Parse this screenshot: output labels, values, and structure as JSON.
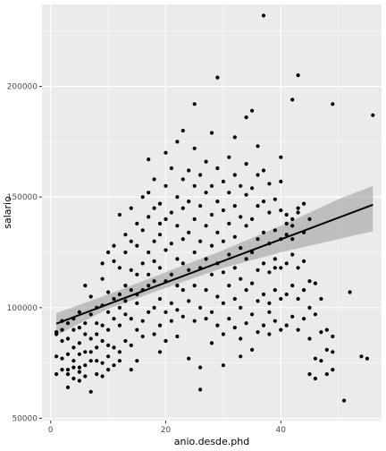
{
  "chart_data": {
    "type": "scatter",
    "title": "",
    "xlabel": "anio.desde.phd",
    "ylabel": "salario",
    "xlim": [
      -1.5,
      57.5
    ],
    "ylim": [
      49000,
      237000
    ],
    "x_ticks": [
      0,
      20,
      40
    ],
    "x_tick_labels": [
      "0",
      "20",
      "40"
    ],
    "y_ticks": [
      50000,
      100000,
      150000,
      200000
    ],
    "y_tick_labels": [
      "50000",
      "100000",
      "150000",
      "200000"
    ],
    "grid": true,
    "panel_background": "#ebebeb",
    "grid_color": "#ffffff",
    "point_color": "#000000",
    "line_color": "#000000",
    "band_color": "#999999",
    "regression": {
      "x": [
        1,
        56
      ],
      "y": [
        92800,
        146500
      ]
    },
    "confidence_band": {
      "x": [
        1,
        10,
        20,
        30,
        40,
        50,
        56
      ],
      "lower": [
        87500,
        99500,
        109000,
        118000,
        125000,
        131000,
        134500
      ],
      "upper": [
        97500,
        106000,
        116000,
        126000,
        137000,
        149000,
        155000
      ]
    },
    "points": [
      [
        1,
        89000
      ],
      [
        1,
        78000
      ],
      [
        1,
        70000
      ],
      [
        1,
        88000
      ],
      [
        2,
        90000
      ],
      [
        2,
        77000
      ],
      [
        2,
        72000
      ],
      [
        2,
        85000
      ],
      [
        2,
        94000
      ],
      [
        3,
        79000
      ],
      [
        3,
        64000
      ],
      [
        3,
        72000
      ],
      [
        3,
        86000
      ],
      [
        3,
        93000
      ],
      [
        3,
        70000
      ],
      [
        4,
        68000
      ],
      [
        4,
        76000
      ],
      [
        4,
        82000
      ],
      [
        4,
        90000
      ],
      [
        4,
        95000
      ],
      [
        4,
        73000
      ],
      [
        5,
        79000
      ],
      [
        5,
        67000
      ],
      [
        5,
        84000
      ],
      [
        5,
        91000
      ],
      [
        5,
        73000
      ],
      [
        5,
        98000
      ],
      [
        5,
        71000
      ],
      [
        6,
        88000
      ],
      [
        6,
        74000
      ],
      [
        6,
        80000
      ],
      [
        6,
        93000
      ],
      [
        6,
        69000
      ],
      [
        6,
        110000
      ],
      [
        7,
        62000
      ],
      [
        7,
        76000
      ],
      [
        7,
        86000
      ],
      [
        7,
        97000
      ],
      [
        7,
        80000
      ],
      [
        7,
        105000
      ],
      [
        8,
        70000
      ],
      [
        8,
        82000
      ],
      [
        8,
        88000
      ],
      [
        8,
        100000
      ],
      [
        8,
        76000
      ],
      [
        8,
        93000
      ],
      [
        9,
        75000
      ],
      [
        9,
        85000
      ],
      [
        9,
        101000
      ],
      [
        9,
        92000
      ],
      [
        9,
        113000
      ],
      [
        9,
        69000
      ],
      [
        9,
        120000
      ],
      [
        10,
        72000
      ],
      [
        10,
        83000
      ],
      [
        10,
        98000
      ],
      [
        10,
        107000
      ],
      [
        10,
        90000
      ],
      [
        10,
        125000
      ],
      [
        10,
        78000
      ],
      [
        11,
        74000
      ],
      [
        11,
        95000
      ],
      [
        11,
        104000
      ],
      [
        11,
        121000
      ],
      [
        11,
        82000
      ],
      [
        11,
        128000
      ],
      [
        12,
        80000
      ],
      [
        12,
        92000
      ],
      [
        12,
        106000
      ],
      [
        12,
        118000
      ],
      [
        12,
        142000
      ],
      [
        12,
        76000
      ],
      [
        12,
        100000
      ],
      [
        13,
        85000
      ],
      [
        13,
        97000
      ],
      [
        13,
        110000
      ],
      [
        13,
        125000
      ],
      [
        13,
        133000
      ],
      [
        13,
        103000
      ],
      [
        14,
        83000
      ],
      [
        14,
        95000
      ],
      [
        14,
        108000
      ],
      [
        14,
        117000
      ],
      [
        14,
        130000
      ],
      [
        14,
        145000
      ],
      [
        14,
        72000
      ],
      [
        15,
        90000
      ],
      [
        15,
        102000
      ],
      [
        15,
        115000
      ],
      [
        15,
        128000
      ],
      [
        15,
        138000
      ],
      [
        15,
        76000
      ],
      [
        15,
        106000
      ],
      [
        16,
        94000
      ],
      [
        16,
        108000
      ],
      [
        16,
        120000
      ],
      [
        16,
        135000
      ],
      [
        16,
        150000
      ],
      [
        16,
        87000
      ],
      [
        17,
        98000
      ],
      [
        17,
        110000
      ],
      [
        17,
        125000
      ],
      [
        17,
        141000
      ],
      [
        17,
        152000
      ],
      [
        17,
        167000
      ],
      [
        17,
        115000
      ],
      [
        18,
        100000
      ],
      [
        18,
        112000
      ],
      [
        18,
        130000
      ],
      [
        18,
        145000
      ],
      [
        18,
        88000
      ],
      [
        18,
        158000
      ],
      [
        18,
        121000
      ],
      [
        19,
        92000
      ],
      [
        19,
        104000
      ],
      [
        19,
        118000
      ],
      [
        19,
        133000
      ],
      [
        19,
        147000
      ],
      [
        19,
        80000
      ],
      [
        19,
        138000
      ],
      [
        20,
        85000
      ],
      [
        20,
        98000
      ],
      [
        20,
        112000
      ],
      [
        20,
        126000
      ],
      [
        20,
        140000
      ],
      [
        20,
        155000
      ],
      [
        20,
        170000
      ],
      [
        21,
        102000
      ],
      [
        21,
        115000
      ],
      [
        21,
        129000
      ],
      [
        21,
        143000
      ],
      [
        21,
        163000
      ],
      [
        21,
        94000
      ],
      [
        22,
        99000
      ],
      [
        22,
        110000
      ],
      [
        22,
        122000
      ],
      [
        22,
        137000
      ],
      [
        22,
        150000
      ],
      [
        22,
        175000
      ],
      [
        22,
        87000
      ],
      [
        23,
        96000
      ],
      [
        23,
        108000
      ],
      [
        23,
        120000
      ],
      [
        23,
        145000
      ],
      [
        23,
        158000
      ],
      [
        23,
        180000
      ],
      [
        23,
        131000
      ],
      [
        24,
        103000
      ],
      [
        24,
        117000
      ],
      [
        24,
        134000
      ],
      [
        24,
        148000
      ],
      [
        24,
        162000
      ],
      [
        24,
        77000
      ],
      [
        25,
        94000
      ],
      [
        25,
        110000
      ],
      [
        25,
        125000
      ],
      [
        25,
        140000
      ],
      [
        25,
        155000
      ],
      [
        25,
        172000
      ],
      [
        25,
        192000
      ],
      [
        26,
        73000
      ],
      [
        26,
        100000
      ],
      [
        26,
        118000
      ],
      [
        26,
        130000
      ],
      [
        26,
        146000
      ],
      [
        26,
        160000
      ],
      [
        26,
        63000
      ],
      [
        27,
        95000
      ],
      [
        27,
        108000
      ],
      [
        27,
        122000
      ],
      [
        27,
        137000
      ],
      [
        27,
        152000
      ],
      [
        27,
        166000
      ],
      [
        28,
        84000
      ],
      [
        28,
        98000
      ],
      [
        28,
        115000
      ],
      [
        28,
        128000
      ],
      [
        28,
        142000
      ],
      [
        28,
        155000
      ],
      [
        28,
        179000
      ],
      [
        29,
        92000
      ],
      [
        29,
        105000
      ],
      [
        29,
        120000
      ],
      [
        29,
        134000
      ],
      [
        29,
        148000
      ],
      [
        29,
        163000
      ],
      [
        29,
        204000
      ],
      [
        30,
        88000
      ],
      [
        30,
        102000
      ],
      [
        30,
        116000
      ],
      [
        30,
        130000
      ],
      [
        30,
        144000
      ],
      [
        30,
        157000
      ],
      [
        30,
        74000
      ],
      [
        31,
        95000
      ],
      [
        31,
        110000
      ],
      [
        31,
        124000
      ],
      [
        31,
        138000
      ],
      [
        31,
        152000
      ],
      [
        31,
        168000
      ],
      [
        32,
        91000
      ],
      [
        32,
        104000
      ],
      [
        32,
        118000
      ],
      [
        32,
        132000
      ],
      [
        32,
        146000
      ],
      [
        32,
        160000
      ],
      [
        32,
        177000
      ],
      [
        33,
        86000
      ],
      [
        33,
        100000
      ],
      [
        33,
        113000
      ],
      [
        33,
        127000
      ],
      [
        33,
        141000
      ],
      [
        33,
        155000
      ],
      [
        33,
        78000
      ],
      [
        34,
        93000
      ],
      [
        34,
        108000
      ],
      [
        34,
        122000
      ],
      [
        34,
        137000
      ],
      [
        34,
        151000
      ],
      [
        34,
        165000
      ],
      [
        34,
        186000
      ],
      [
        35,
        97000
      ],
      [
        35,
        111000
      ],
      [
        35,
        125000
      ],
      [
        35,
        140000
      ],
      [
        35,
        154000
      ],
      [
        35,
        189000
      ],
      [
        35,
        81000
      ],
      [
        36,
        89000
      ],
      [
        36,
        103000
      ],
      [
        36,
        117000
      ],
      [
        36,
        131000
      ],
      [
        36,
        146000
      ],
      [
        36,
        160000
      ],
      [
        36,
        173000
      ],
      [
        37,
        92000
      ],
      [
        37,
        106000
      ],
      [
        37,
        120000
      ],
      [
        37,
        134000
      ],
      [
        37,
        148000
      ],
      [
        37,
        162000
      ],
      [
        37,
        232000
      ],
      [
        38,
        88000
      ],
      [
        38,
        102000
      ],
      [
        38,
        116000
      ],
      [
        38,
        129000
      ],
      [
        38,
        143000
      ],
      [
        38,
        156000
      ],
      [
        38,
        98000
      ],
      [
        39,
        94000
      ],
      [
        39,
        108000
      ],
      [
        39,
        122000
      ],
      [
        39,
        135000
      ],
      [
        39,
        149000
      ],
      [
        39,
        118000
      ],
      [
        40,
        90000
      ],
      [
        40,
        104000
      ],
      [
        40,
        118000
      ],
      [
        40,
        131000
      ],
      [
        40,
        144000
      ],
      [
        40,
        157000
      ],
      [
        40,
        168000
      ],
      [
        41,
        92000
      ],
      [
        41,
        106000
      ],
      [
        41,
        120000
      ],
      [
        41,
        133000
      ],
      [
        41,
        142000
      ],
      [
        41,
        138000
      ],
      [
        42,
        96000
      ],
      [
        42,
        110000
      ],
      [
        42,
        124000
      ],
      [
        42,
        137000
      ],
      [
        42,
        140000
      ],
      [
        42,
        131000
      ],
      [
        42,
        194000
      ],
      [
        43,
        90000
      ],
      [
        43,
        104000
      ],
      [
        43,
        118000
      ],
      [
        43,
        143000
      ],
      [
        43,
        145000
      ],
      [
        43,
        205000
      ],
      [
        44,
        95000
      ],
      [
        44,
        108000
      ],
      [
        44,
        121000
      ],
      [
        44,
        134000
      ],
      [
        44,
        147000
      ],
      [
        45,
        86000
      ],
      [
        45,
        100000
      ],
      [
        45,
        112000
      ],
      [
        45,
        70000
      ],
      [
        45,
        140000
      ],
      [
        46,
        77000
      ],
      [
        46,
        97000
      ],
      [
        46,
        111000
      ],
      [
        46,
        68000
      ],
      [
        47,
        89000
      ],
      [
        47,
        76000
      ],
      [
        47,
        104000
      ],
      [
        48,
        90000
      ],
      [
        48,
        81000
      ],
      [
        48,
        70000
      ],
      [
        49,
        192000
      ],
      [
        49,
        72000
      ],
      [
        49,
        80000
      ],
      [
        49,
        87000
      ],
      [
        51,
        58000
      ],
      [
        52,
        107000
      ],
      [
        54,
        78000
      ],
      [
        55,
        77000
      ],
      [
        56,
        187000
      ]
    ]
  }
}
